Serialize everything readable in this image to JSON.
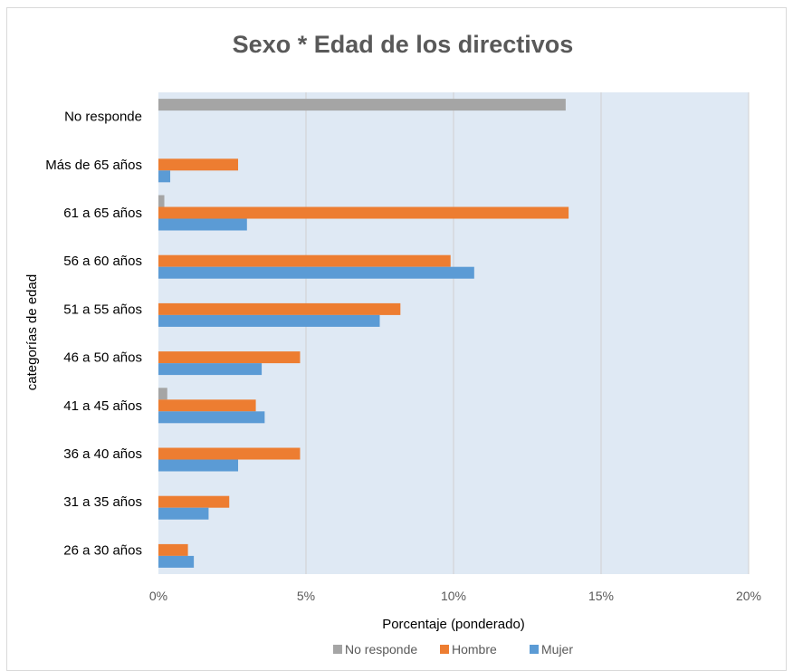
{
  "chart_data": {
    "type": "bar",
    "orientation": "horizontal",
    "title": "Sexo * Edad de los directivos",
    "xlabel": "Porcentaje (ponderado)",
    "ylabel": "categorías de edad",
    "xlim": [
      0,
      20
    ],
    "x_ticks": [
      "0%",
      "5%",
      "10%",
      "15%",
      "20%"
    ],
    "grid": true,
    "legend_position": "bottom",
    "categories": [
      "No responde",
      "Más de 65 años",
      "61 a 65 años",
      "56 a 60 años",
      "51 a 55 años",
      "46 a 50 años",
      "41 a 45 años",
      "36 a 40 años",
      "31 a 35 años",
      "26 a 30 años"
    ],
    "series": [
      {
        "name": "No responde",
        "color": "#a5a5a5",
        "values": [
          13.8,
          0,
          0.2,
          0,
          0,
          0,
          0.3,
          0,
          0,
          0
        ]
      },
      {
        "name": "Hombre",
        "color": "#ed7d31",
        "values": [
          0,
          2.7,
          13.9,
          9.9,
          8.2,
          4.8,
          3.3,
          4.8,
          2.4,
          1.0
        ]
      },
      {
        "name": "Mujer",
        "color": "#5b9bd5",
        "values": [
          0,
          0.4,
          3.0,
          10.7,
          7.5,
          3.5,
          3.6,
          2.7,
          1.7,
          1.2
        ]
      }
    ],
    "plot_background": "#dfe9f4",
    "gridline_color": "#d0d0d0"
  }
}
